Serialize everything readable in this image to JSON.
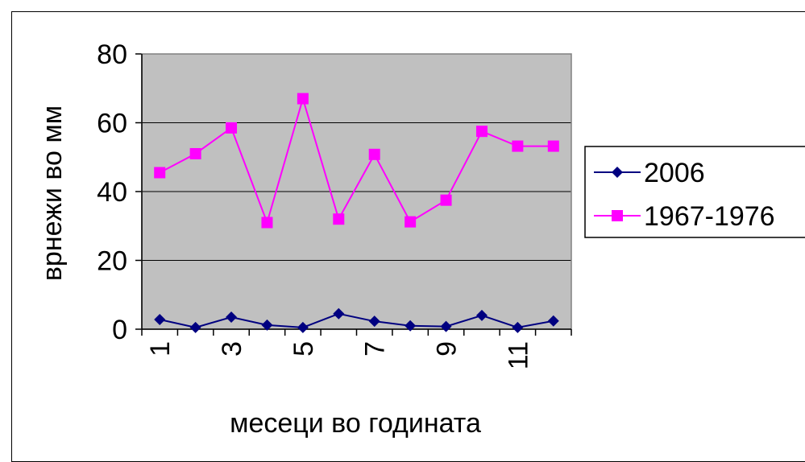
{
  "chart_data": {
    "type": "line",
    "title": "",
    "xlabel": "месеци во годината",
    "ylabel": "врнежи во мм",
    "ylim": [
      0,
      80
    ],
    "yticks": [
      "0",
      "20",
      "40",
      "60",
      "80"
    ],
    "x": [
      1,
      2,
      3,
      4,
      5,
      6,
      7,
      8,
      9,
      10,
      11,
      12
    ],
    "xtick_labels": [
      "1",
      "3",
      "5",
      "7",
      "9",
      "11"
    ],
    "grid": true,
    "legend_position": "right",
    "plot_background": "#c0c0c0",
    "series": [
      {
        "name": "2006",
        "color": "#000080",
        "marker": "diamond",
        "values": [
          2.8,
          0.5,
          3.5,
          1.2,
          0.5,
          4.5,
          2.3,
          1.0,
          0.8,
          4.0,
          0.5,
          2.4
        ]
      },
      {
        "name": "1967-1976",
        "color": "#ff00ff",
        "marker": "square",
        "values": [
          45.5,
          51.0,
          58.5,
          31.0,
          67.0,
          32.0,
          50.8,
          31.2,
          37.5,
          57.5,
          53.2,
          53.2
        ]
      }
    ]
  }
}
